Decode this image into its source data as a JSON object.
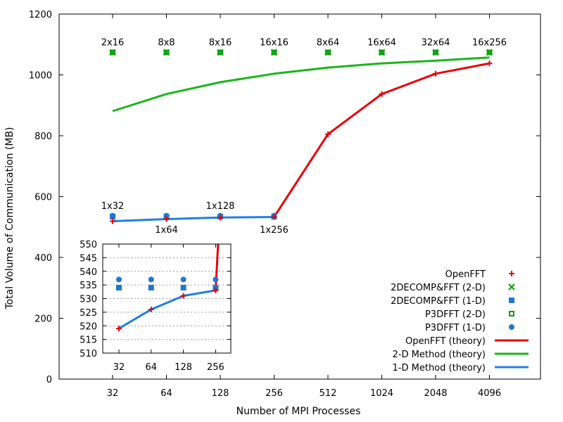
{
  "chart_data": {
    "type": "line",
    "title": "",
    "xlabel": "Number of MPI Processes",
    "ylabel": "Total Volume of Communication (MB)",
    "x_categories": [
      32,
      64,
      128,
      256,
      512,
      1024,
      2048,
      4096
    ],
    "x_scale": "log2",
    "y_range": [
      0,
      1200
    ],
    "y_ticks": [
      0,
      200,
      400,
      600,
      800,
      1000,
      1200
    ],
    "y_tick_labels": [
      "0",
      "200",
      "400",
      "600",
      "800",
      "1000",
      "1200"
    ],
    "grid": false,
    "legend_position": "bottom-right",
    "series": [
      {
        "name": "OpenFFT",
        "marker": "plus",
        "color": "#e8000b",
        "points": [
          [
            32,
            519
          ],
          [
            64,
            526
          ],
          [
            128,
            531
          ],
          [
            256,
            533
          ],
          [
            512,
            805
          ],
          [
            1024,
            937
          ],
          [
            2048,
            1004
          ],
          [
            4096,
            1038
          ]
        ]
      },
      {
        "name": "2DECOMP&FFT (2-D)",
        "marker": "cross",
        "color": "#0aa00a",
        "points": [
          [
            32,
            1074
          ],
          [
            64,
            1074
          ],
          [
            128,
            1074
          ],
          [
            256,
            1074
          ],
          [
            512,
            1074
          ],
          [
            1024,
            1074
          ],
          [
            2048,
            1074
          ],
          [
            4096,
            1074
          ]
        ]
      },
      {
        "name": "2DECOMP&FFT (1-D)",
        "marker": "square",
        "color": "#1f77d4",
        "points": [
          [
            32,
            534
          ],
          [
            64,
            534
          ],
          [
            128,
            534
          ],
          [
            256,
            534
          ]
        ]
      },
      {
        "name": "P3DFFT (2-D)",
        "marker": "open-square",
        "color": "#0aa00a",
        "points": [
          [
            32,
            1074
          ],
          [
            64,
            1074
          ],
          [
            128,
            1074
          ],
          [
            256,
            1074
          ],
          [
            512,
            1074
          ],
          [
            1024,
            1074
          ],
          [
            2048,
            1074
          ],
          [
            4096,
            1074
          ]
        ]
      },
      {
        "name": "P3DFFT (1-D)",
        "marker": "circle",
        "color": "#1f77d4",
        "points": [
          [
            32,
            537
          ],
          [
            64,
            537
          ],
          [
            128,
            537
          ],
          [
            256,
            537
          ]
        ]
      },
      {
        "name": "OpenFFT (theory)",
        "line": true,
        "color": "#e8000b",
        "points": [
          [
            256,
            533
          ],
          [
            512,
            805
          ],
          [
            1024,
            937
          ],
          [
            2048,
            1004
          ],
          [
            4096,
            1038
          ]
        ]
      },
      {
        "name": "2-D Method (theory)",
        "line": true,
        "color": "#1cb51c",
        "points": [
          [
            32,
            881
          ],
          [
            64,
            937
          ],
          [
            128,
            976
          ],
          [
            256,
            1004
          ],
          [
            512,
            1024
          ],
          [
            1024,
            1038
          ],
          [
            2048,
            1047
          ],
          [
            4096,
            1057
          ]
        ]
      },
      {
        "name": "1-D Method (theory)",
        "line": true,
        "color": "#1f7fe0",
        "points": [
          [
            32,
            519
          ],
          [
            64,
            526
          ],
          [
            128,
            531
          ],
          [
            256,
            533
          ]
        ]
      }
    ],
    "annotations_top": [
      {
        "x": 32,
        "text": "2x16"
      },
      {
        "x": 64,
        "text": "8x8"
      },
      {
        "x": 128,
        "text": "8x16"
      },
      {
        "x": 256,
        "text": "16x16"
      },
      {
        "x": 512,
        "text": "8x64"
      },
      {
        "x": 1024,
        "text": "16x64"
      },
      {
        "x": 2048,
        "text": "32x64"
      },
      {
        "x": 4096,
        "text": "16x256"
      }
    ],
    "annotations_1d": [
      {
        "x": 32,
        "text": "1x32",
        "pos": "above"
      },
      {
        "x": 64,
        "text": "1x64",
        "pos": "below"
      },
      {
        "x": 128,
        "text": "1x128",
        "pos": "above"
      },
      {
        "x": 256,
        "text": "1x256",
        "pos": "below"
      }
    ],
    "inset": {
      "x_categories": [
        32,
        64,
        128,
        256
      ],
      "y_range": [
        510,
        550
      ],
      "y_ticks": [
        510,
        515,
        520,
        525,
        530,
        535,
        540,
        545,
        550
      ],
      "y_tick_labels": [
        "510",
        "515",
        "520",
        "525",
        "530",
        "535",
        "540",
        "545",
        "550"
      ],
      "grid": true
    }
  }
}
